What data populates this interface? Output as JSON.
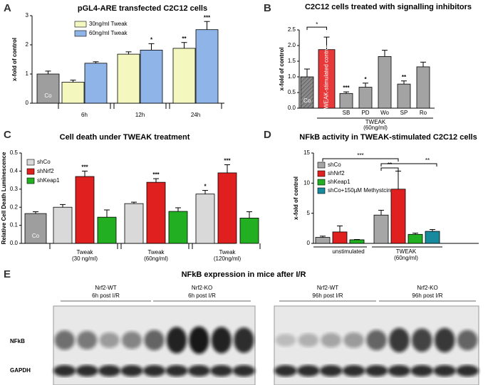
{
  "chart_data": [
    {
      "type": "bar",
      "panel": "A",
      "title": "pGL4-ARE transfected C2C12 cells",
      "y_label": "x-fold of control",
      "ylim": [
        0,
        3
      ],
      "yticks": [
        0,
        1,
        2,
        3
      ],
      "control": {
        "label": "Co",
        "value": 1.0,
        "error": 0.1,
        "color": "#9e9e9e"
      },
      "categories": [
        "6h",
        "12h",
        "24h"
      ],
      "series": [
        {
          "name": "30ng/ml Tweak",
          "color": "#f4f8bf",
          "values": [
            0.72,
            1.68,
            1.88
          ],
          "errors": [
            0.07,
            0.08,
            0.2
          ],
          "annotations": [
            null,
            null,
            "**"
          ]
        },
        {
          "name": "60ng/ml Tweak",
          "color": "#8fb4e8",
          "values": [
            1.37,
            1.82,
            2.52
          ],
          "errors": [
            0.05,
            0.22,
            0.28
          ],
          "annotations": [
            null,
            "*",
            "***"
          ]
        }
      ]
    },
    {
      "type": "bar",
      "panel": "B",
      "title": "C2C12 cells treated with signalling inhibitors",
      "y_label": "x-fold of control",
      "ylim": [
        0,
        2.5
      ],
      "yticks": [
        {
          "value": 0,
          "label": "0.0"
        },
        0.5,
        {
          "value": 1,
          "label": "1.0"
        },
        1.5,
        {
          "value": 2,
          "label": "2.0"
        },
        2.5
      ],
      "control": {
        "label": "Co",
        "value": 1.0,
        "error": 0.25,
        "color": "#8a8a8a"
      },
      "stimulated": {
        "label": "TWEAK-stimulated control",
        "value": 1.87,
        "error": 0.4,
        "color": "#e8393a"
      },
      "bracket": "*",
      "group_label": "TWEAK",
      "group_sublabel": "(60ng/ml)",
      "categories": [
        "SB",
        "PD",
        "Wo",
        "SP",
        "Ro"
      ],
      "series": [
        {
          "color": "#a3a3a3",
          "values": [
            0.47,
            0.67,
            1.65,
            0.77,
            1.32
          ],
          "errors": [
            0.05,
            0.13,
            0.2,
            0.1,
            0.15
          ],
          "annotations": [
            "***",
            "*",
            null,
            "**",
            null
          ]
        }
      ]
    },
    {
      "type": "bar",
      "panel": "C",
      "title": "Cell death under TWEAK treatment",
      "y_label": "Relative Cell Death Luminescence",
      "ylim": [
        0,
        0.5
      ],
      "yticks": [
        {
          "value": 0,
          "label": "0.0"
        },
        0.1,
        0.2,
        0.3,
        0.4,
        0.5
      ],
      "control": {
        "label": "Co",
        "value": 0.165,
        "error": 0.01,
        "color": "#9e9e9e"
      },
      "categories": [
        "Tweak",
        "Tweak",
        "Tweak"
      ],
      "category_sublabels": [
        "(30 ng/ml)",
        "(60ng/ml)",
        "(120ng/ml)"
      ],
      "series": [
        {
          "name": "shCo",
          "color": "#d9d9d9",
          "values": [
            0.2,
            0.22,
            0.273
          ],
          "errors": [
            0.015,
            0.008,
            0.02
          ],
          "annotations": [
            null,
            null,
            "*"
          ]
        },
        {
          "name": "shNrf2",
          "color": "#e0201f",
          "values": [
            0.37,
            0.338,
            0.39
          ],
          "errors": [
            0.03,
            0.02,
            0.045
          ],
          "annotations": [
            "***",
            "***",
            "***"
          ]
        },
        {
          "name": "shKeap1",
          "color": "#22b022",
          "values": [
            0.145,
            0.177,
            0.14
          ],
          "errors": [
            0.04,
            0.02,
            0.035
          ],
          "annotations": [
            null,
            null,
            null
          ]
        }
      ]
    },
    {
      "type": "bar",
      "panel": "D",
      "title": "NFkB activity in TWEAK-stimulated C2C12 cells",
      "y_label": "x-fold of control",
      "ylim": [
        0,
        15
      ],
      "yticks": [
        0,
        5,
        10,
        15
      ],
      "brackets": [
        "***",
        "**",
        "**"
      ],
      "categories": [
        "unstimulated",
        "TWEAK"
      ],
      "category_sublabels": [
        null,
        "(60ng/ml)"
      ],
      "series": [
        {
          "name": "shCo",
          "color": "#a6a6a6",
          "values": [
            1.0,
            4.7
          ],
          "errors": [
            0.2,
            0.8
          ]
        },
        {
          "name": "shNrf2",
          "color": "#e0201f",
          "values": [
            1.9,
            9.0
          ],
          "errors": [
            1.0,
            3.0
          ]
        },
        {
          "name": "shKeap1",
          "color": "#22b022",
          "values": [
            0.6,
            1.5
          ],
          "errors": [
            0.05,
            0.2
          ]
        },
        {
          "name": "shCo+150µM Methystcin",
          "color": "#178a9e",
          "values": [
            null,
            2.0
          ],
          "errors": [
            null,
            0.3
          ]
        }
      ]
    }
  ],
  "blot": {
    "panel": "E",
    "title": "NFkB expression in mice after I/R",
    "groups": [
      {
        "name": "Nrf2-WT",
        "time": "6h post I/R"
      },
      {
        "name": "Nrf2-KO",
        "time": "6h post I/R"
      },
      {
        "name": "Nrf2-WT",
        "time": "96h post I/R"
      },
      {
        "name": "Nrf2-KO",
        "time": "96h post I/R"
      }
    ],
    "rows": [
      "NFkB",
      "GAPDH"
    ]
  }
}
